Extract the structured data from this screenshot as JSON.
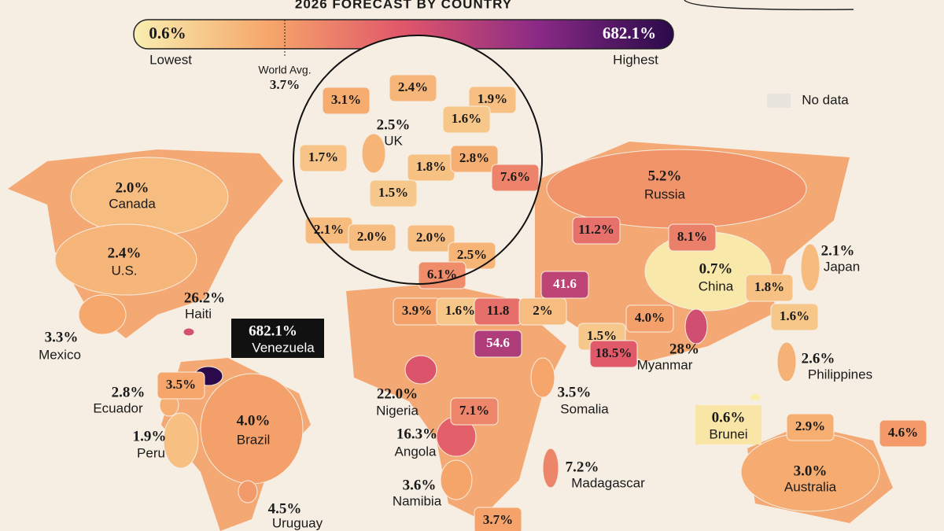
{
  "title": "2026 FORECAST BY COUNTRY",
  "legend": {
    "min": "0.6%",
    "max": "682.1%",
    "low_label": "Lowest",
    "high_label": "Highest",
    "avg_label": "World Avg.",
    "avg": "3.7%",
    "no_data": "No data"
  },
  "countries": [
    {
      "name": "Canada",
      "value": "2.0%"
    },
    {
      "name": "U.S.",
      "value": "2.4%"
    },
    {
      "name": "Mexico",
      "value": "3.3%"
    },
    {
      "name": "Haiti",
      "value": "26.2%"
    },
    {
      "name": "Venezuela",
      "value": "682.1%"
    },
    {
      "name": "Ecuador",
      "value": "2.8%"
    },
    {
      "name": "Peru",
      "value": "1.9%"
    },
    {
      "name": "Brazil",
      "value": "4.0%"
    },
    {
      "name": "Uruguay",
      "value": "4.5%"
    },
    {
      "name": "UK",
      "value": "2.5%"
    },
    {
      "name": "Russia",
      "value": "5.2%"
    },
    {
      "name": "China",
      "value": "0.7%"
    },
    {
      "name": "Japan",
      "value": "2.1%"
    },
    {
      "name": "Myanmar",
      "value": "28%"
    },
    {
      "name": "Philippines",
      "value": "2.6%"
    },
    {
      "name": "Brunei",
      "value": "0.6%"
    },
    {
      "name": "Australia",
      "value": "3.0%"
    },
    {
      "name": "Nigeria",
      "value": "22.0%"
    },
    {
      "name": "Angola",
      "value": "16.3%"
    },
    {
      "name": "Namibia",
      "value": "3.6%"
    },
    {
      "name": "Somalia",
      "value": "3.5%"
    },
    {
      "name": "Madagascar",
      "value": "7.2%"
    }
  ],
  "other_labels": [
    "3.5%",
    "3.1%",
    "2.4%",
    "1.9%",
    "1.6%",
    "1.7%",
    "1.8%",
    "2.8%",
    "7.6%",
    "1.5%",
    "2.1%",
    "2.0%",
    "2.0%",
    "2.5%",
    "6.1%",
    "11.2%",
    "8.1%",
    "41.6",
    "3.9%",
    "1.6%",
    "11.8",
    "2%",
    "54.6",
    "1.5%",
    "18.5%",
    "4.0%",
    "1.8%",
    "1.6%",
    "7.1%",
    "2.9%",
    "4.6%",
    "3.7%"
  ]
}
